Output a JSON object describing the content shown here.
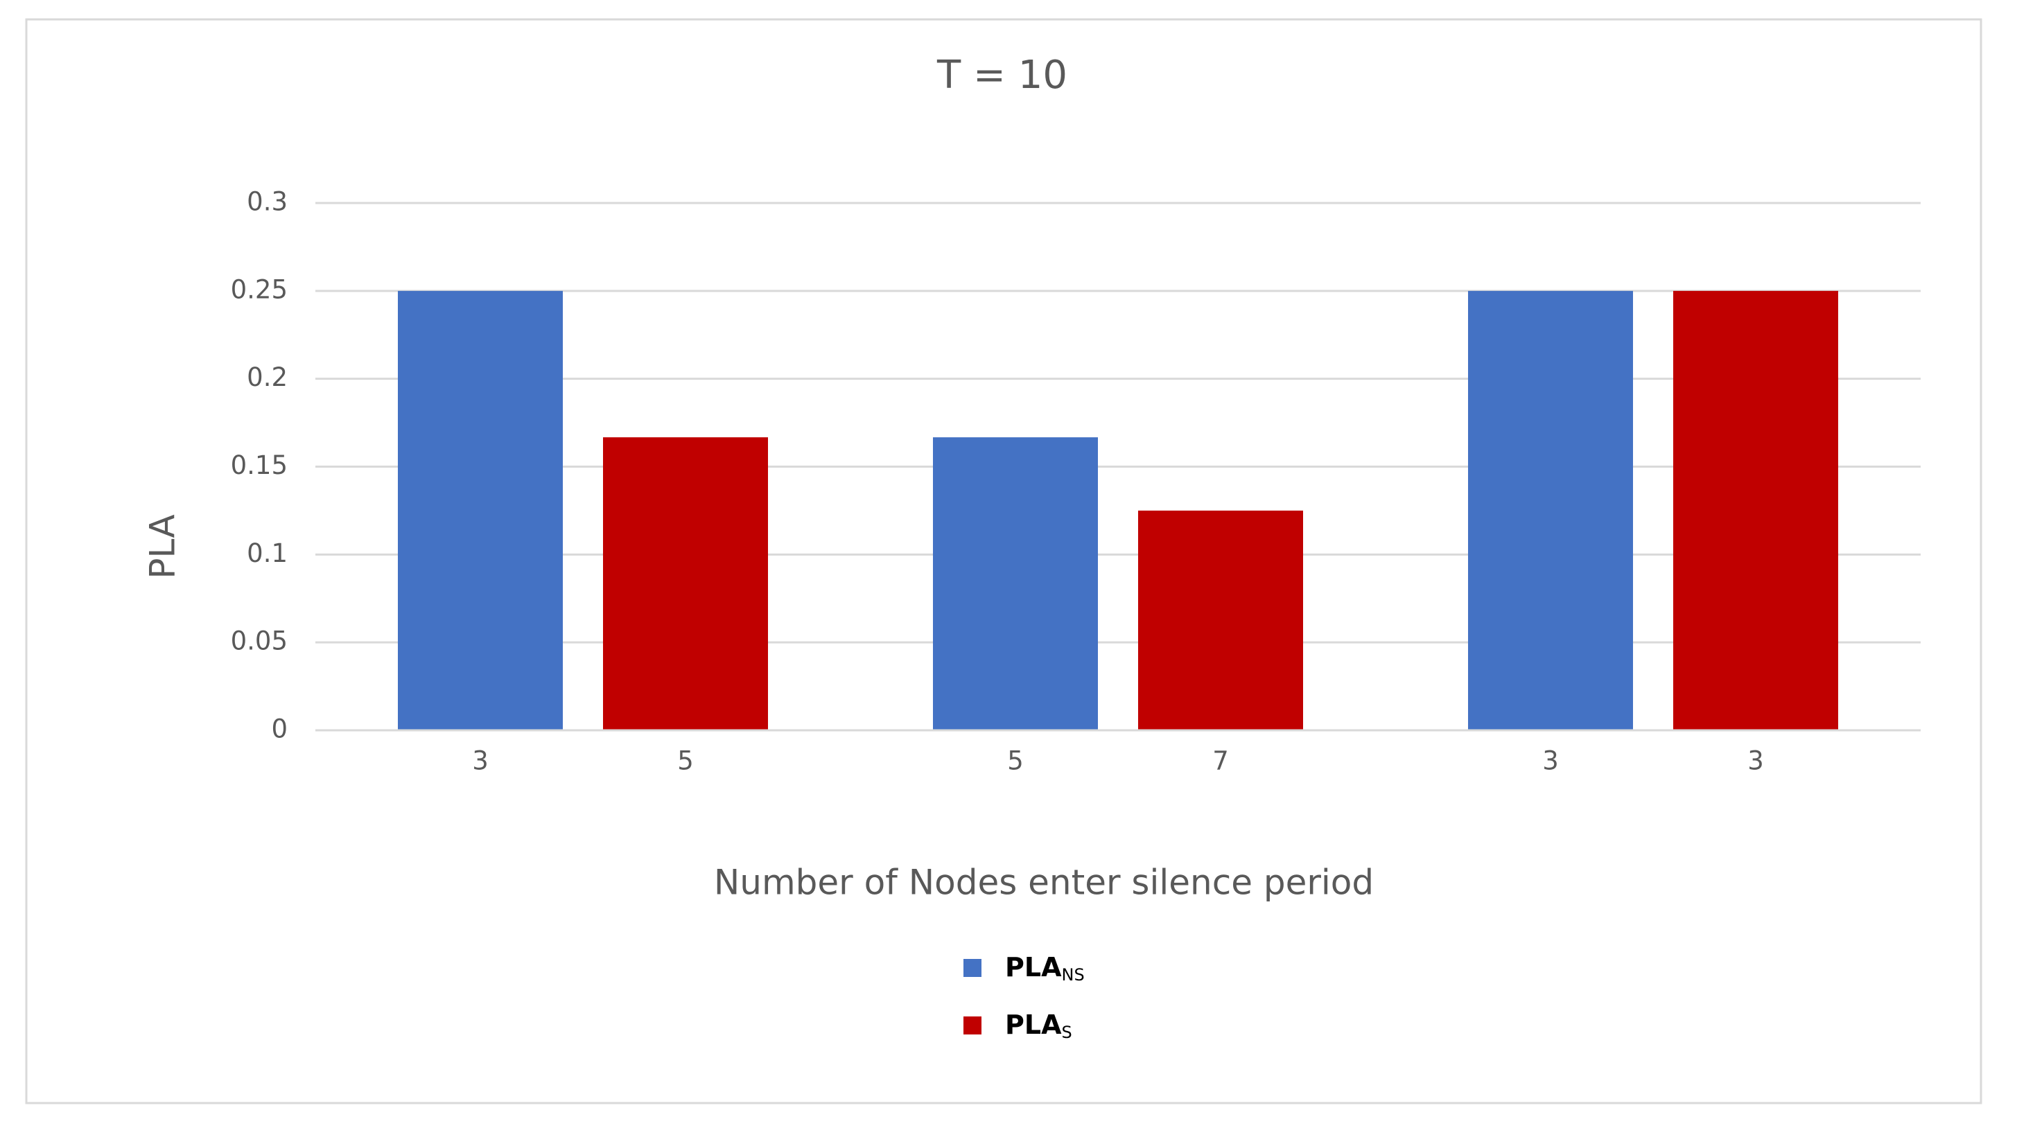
{
  "chart_data": {
    "type": "bar",
    "title": "T = 10",
    "x_label": "Number of Nodes enter silence period",
    "y_label": "PLA",
    "series": [
      {
        "name": "PLA",
        "name_subscript": "NS",
        "color": "#4472c4",
        "values": [
          0.25,
          0.1667,
          0.25
        ],
        "bar_labels": [
          3,
          5,
          3
        ]
      },
      {
        "name": "PLA",
        "name_subscript": "S",
        "color": "#c00000",
        "values": [
          0.1667,
          0.125,
          0.25
        ],
        "bar_labels": [
          5,
          7,
          3
        ]
      }
    ],
    "ylim": [
      0,
      0.3
    ],
    "yticks": [
      0,
      0.05,
      0.1,
      0.15,
      0.2,
      0.25,
      0.3
    ],
    "grid": true,
    "legend": "bottom"
  }
}
